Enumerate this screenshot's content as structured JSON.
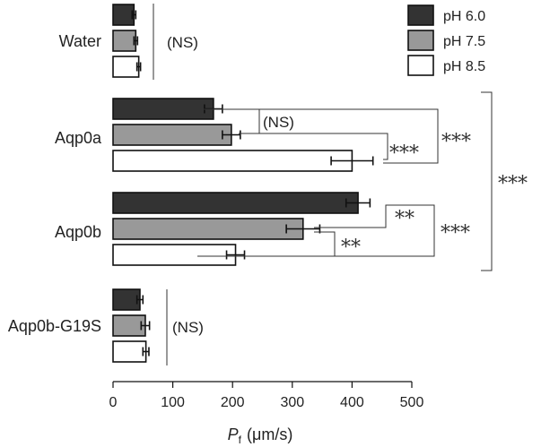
{
  "chart_data": {
    "type": "bar",
    "orientation": "horizontal",
    "xlim": [
      0,
      500
    ],
    "x_ticks": [
      "0",
      "100",
      "200",
      "300",
      "400",
      "500"
    ],
    "xlabel_symbol": "P",
    "xlabel_sub": "f",
    "xlabel_unit": "(μm/s)",
    "categories": [
      "Water",
      "Aqp0a",
      "Aqp0b",
      "Aqp0b-G19S"
    ],
    "series": [
      {
        "name": "pH 6.0",
        "color": "#333333",
        "values": [
          35,
          168,
          410,
          45
        ],
        "errors": [
          3,
          15,
          20,
          5
        ]
      },
      {
        "name": "pH 7.5",
        "color": "#999999",
        "values": [
          38,
          198,
          318,
          54
        ],
        "errors": [
          3,
          15,
          28,
          7
        ]
      },
      {
        "name": "pH 8.5",
        "color": "#ffffff",
        "values": [
          43,
          400,
          205,
          55
        ],
        "errors": [
          3,
          35,
          15,
          5
        ]
      }
    ],
    "legend_position": "top-right",
    "significance": {
      "water": "(NS)",
      "aqp0a_60_75": "(NS)",
      "aqp0a_75_85": "***",
      "aqp0a_60_85": "***",
      "aqp0b_60_75": "**",
      "aqp0b_75_85": "**",
      "aqp0b_60_85": "***",
      "aqp0a_vs_aqp0b": "***",
      "g19s": "(NS)"
    }
  }
}
